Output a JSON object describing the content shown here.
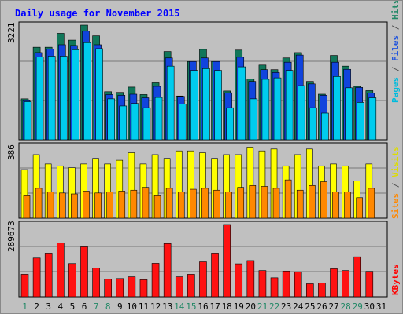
{
  "chart_data": {
    "type": "bar",
    "title": "Daily usage for November 2015",
    "categories": [
      "1",
      "2",
      "3",
      "4",
      "5",
      "6",
      "7",
      "8",
      "9",
      "10",
      "11",
      "12",
      "13",
      "14",
      "15",
      "16",
      "17",
      "18",
      "19",
      "20",
      "21",
      "22",
      "23",
      "24",
      "25",
      "26",
      "27",
      "28",
      "29",
      "30",
      "31"
    ],
    "weekend_days": [
      "1",
      "7",
      "8",
      "14",
      "15",
      "21",
      "22",
      "28",
      "29"
    ],
    "max_labels": {
      "top": "3221",
      "middle": "386",
      "bottom": "289673"
    },
    "right_labels": {
      "top": [
        {
          "text": "Pages",
          "color": "#00bbdd"
        },
        {
          "text": " / ",
          "color": "#555555"
        },
        {
          "text": "Files",
          "color": "#2255dd"
        },
        {
          "text": " / ",
          "color": "#555555"
        },
        {
          "text": "Hits",
          "color": "#228866"
        }
      ],
      "middle": [
        {
          "text": "Sites",
          "color": "#ff8800"
        },
        {
          "text": " / ",
          "color": "#555555"
        },
        {
          "text": "Visits",
          "color": "#dddd00"
        }
      ],
      "bottom": [
        {
          "text": "KBytes",
          "color": "#ff0000"
        }
      ]
    },
    "panels": {
      "top": {
        "ylim": [
          0,
          3221
        ],
        "series": [
          {
            "name": "Hits",
            "color": "#11775a",
            "values": [
              1150,
              2600,
              2600,
              2990,
              2800,
              3221,
              2920,
              1350,
              1330,
              1480,
              1270,
              1600,
              2480,
              1230,
              2200,
              2540,
              2200,
              1370,
              2520,
              1710,
              2100,
              1970,
              2300,
              2450,
              1640,
              1280,
              2370,
              2070,
              1500,
              1380,
              null
            ]
          },
          {
            "name": "Files",
            "color": "#1144dd",
            "values": [
              1100,
              2450,
              2550,
              2670,
              2650,
              3050,
              2670,
              1270,
              1250,
              1280,
              1180,
              1500,
              2300,
              1220,
              2200,
              2300,
              2200,
              1320,
              2320,
              1640,
              1970,
              1890,
              2180,
              2380,
              1570,
              1250,
              2180,
              1980,
              1470,
              1310,
              null
            ]
          },
          {
            "name": "Pages",
            "color": "#00ccee",
            "values": [
              1070,
              2330,
              2350,
              2350,
              2530,
              2730,
              2560,
              1150,
              950,
              1020,
              900,
              1190,
              2070,
              1000,
              1950,
              2000,
              1950,
              900,
              2050,
              1150,
              1700,
              1740,
              1950,
              1520,
              900,
              750,
              1780,
              1460,
              1050,
              1180,
              null
            ]
          }
        ]
      },
      "middle": {
        "ylim": [
          0,
          386
        ],
        "series": [
          {
            "name": "Visits",
            "color": "#ffff00",
            "values": [
              260,
              340,
              290,
              280,
              270,
              290,
              320,
              290,
              310,
              350,
              290,
              340,
              320,
              360,
              360,
              350,
              320,
              340,
              340,
              380,
              360,
              370,
              280,
              340,
              370,
              280,
              290,
              280,
              200,
              290,
              null
            ]
          },
          {
            "name": "Sites",
            "color": "#ff8800",
            "values": [
              120,
              160,
              140,
              135,
              130,
              145,
              135,
              140,
              145,
              150,
              165,
              120,
              160,
              140,
              155,
              160,
              150,
              140,
              165,
              175,
              170,
              160,
              205,
              150,
              175,
              195,
              140,
              140,
              110,
              160,
              null
            ]
          }
        ]
      },
      "bottom": {
        "ylim": [
          0,
          289673
        ],
        "series": [
          {
            "name": "KBytes",
            "color": "#ff1111",
            "values": [
              90000,
              155000,
              175000,
              215000,
              133000,
              200000,
              115000,
              70000,
              73000,
              80000,
              68000,
              134000,
              213000,
              80000,
              90000,
              140000,
              175000,
              289673,
              132000,
              145000,
              105000,
              76000,
              103000,
              100000,
              52000,
              55000,
              112000,
              105000,
              160000,
              102000,
              null
            ]
          }
        ]
      }
    }
  }
}
